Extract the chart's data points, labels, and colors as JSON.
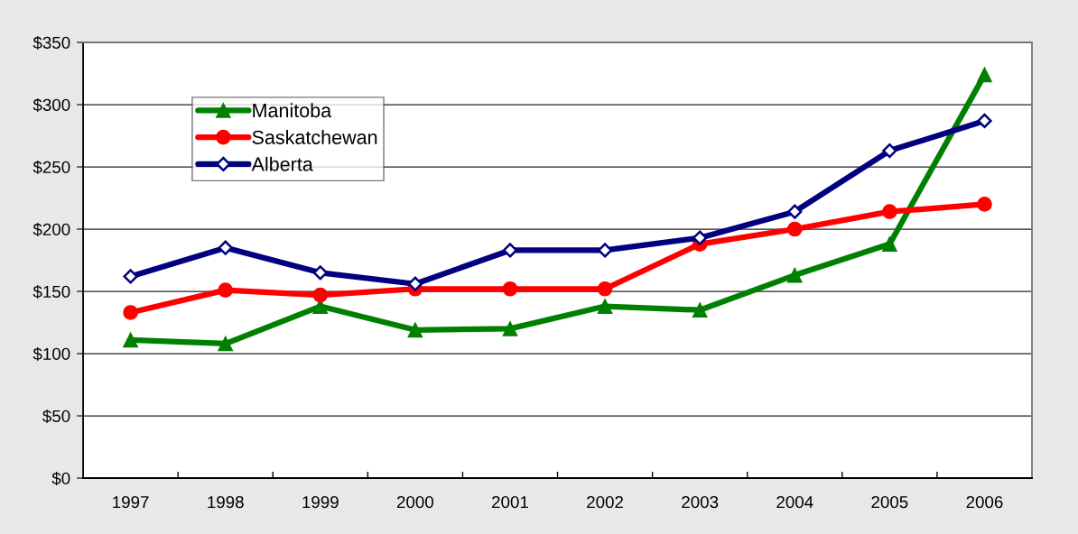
{
  "chart_data": {
    "type": "line",
    "categories": [
      "1997",
      "1998",
      "1999",
      "2000",
      "2001",
      "2002",
      "2003",
      "2004",
      "2005",
      "2006"
    ],
    "series": [
      {
        "name": "Manitoba",
        "color": "#008000",
        "marker": "triangle",
        "values": [
          111,
          108,
          138,
          119,
          120,
          138,
          135,
          163,
          188,
          324
        ]
      },
      {
        "name": "Saskatchewan",
        "color": "#ff0000",
        "marker": "circle",
        "values": [
          133,
          151,
          147,
          152,
          152,
          152,
          188,
          200,
          214,
          220
        ]
      },
      {
        "name": "Alberta",
        "color": "#000080",
        "marker": "diamond",
        "values": [
          162,
          185,
          165,
          156,
          183,
          183,
          193,
          214,
          263,
          287
        ]
      }
    ],
    "ylim": [
      0,
      350
    ],
    "yticks": [
      {
        "value": 0,
        "label": "$0"
      },
      {
        "value": 50,
        "label": "$50"
      },
      {
        "value": 100,
        "label": "$100"
      },
      {
        "value": 150,
        "label": "$150"
      },
      {
        "value": 200,
        "label": "$200"
      },
      {
        "value": 250,
        "label": "$250"
      },
      {
        "value": 300,
        "label": "$300"
      },
      {
        "value": 350,
        "label": "$350"
      }
    ],
    "grid": "y",
    "legend": "top left",
    "line_style": "solid"
  }
}
